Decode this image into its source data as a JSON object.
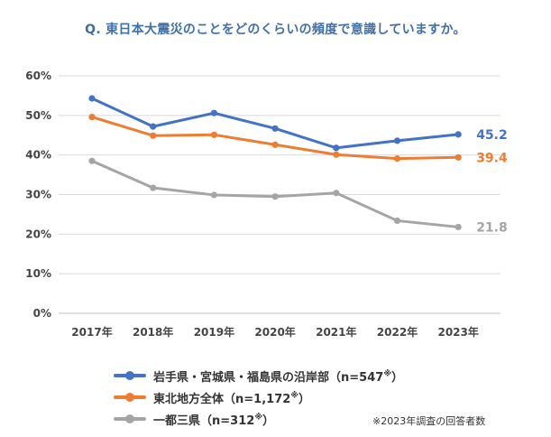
{
  "chart_data": {
    "type": "line",
    "title": "Q. 東日本大震災のことをどのくらいの頻度で意識していますか。",
    "categories": [
      "2017年",
      "2018年",
      "2019年",
      "2020年",
      "2021年",
      "2022年",
      "2023年"
    ],
    "yticks": [
      "0%",
      "10%",
      "20%",
      "30%",
      "40%",
      "50%",
      "60%"
    ],
    "ylim": [
      0,
      60
    ],
    "grid": true,
    "legend_position": "bottom",
    "series": [
      {
        "name": "岩手県・宮城県・福島県の沿岸部",
        "sample": "（n=547",
        "mark": "※",
        "close": "）",
        "color": "#4472c4",
        "values": [
          54.3,
          47.2,
          50.6,
          46.7,
          41.8,
          43.6,
          45.2
        ],
        "end_label": "45.2"
      },
      {
        "name": "東北地方全体",
        "sample": "（n=1,172",
        "mark": "※",
        "close": "）",
        "color": "#ed7d31",
        "values": [
          49.6,
          44.9,
          45.1,
          42.6,
          40.1,
          39.1,
          39.4
        ],
        "end_label": "39.4"
      },
      {
        "name": "一都三県",
        "sample": "（n=312",
        "mark": "※",
        "close": "）",
        "color": "#a5a5a5",
        "values": [
          38.5,
          31.7,
          29.9,
          29.5,
          30.4,
          23.4,
          21.8
        ],
        "end_label": "21.8"
      }
    ],
    "note": "※2023年調査の回答者数"
  }
}
